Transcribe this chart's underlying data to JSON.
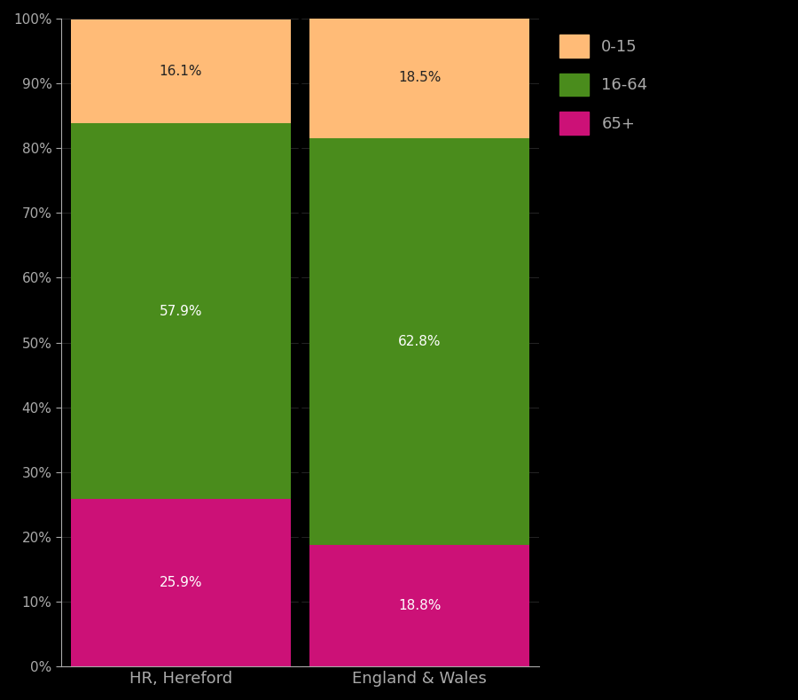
{
  "categories": [
    "HR, Hereford",
    "England & Wales"
  ],
  "segments": {
    "65+": [
      25.9,
      18.8
    ],
    "16-64": [
      57.9,
      62.8
    ],
    "0-15": [
      16.1,
      18.5
    ]
  },
  "colors": {
    "65+": "#cc1177",
    "16-64": "#4a8c1c",
    "0-15": "#ffbb77"
  },
  "label_colors": {
    "65+": "white",
    "16-64": "white",
    "0-15": "#222222"
  },
  "background_color": "#000000",
  "plot_bg_color": "#000000",
  "text_color": "#aaaaaa",
  "ytick_color": "#aaaaaa",
  "xtick_color": "#aaaaaa",
  "spine_color": "#aaaaaa",
  "separator_color": "#000000",
  "bar_width": 0.92,
  "ylim": [
    0,
    100
  ],
  "yticks": [
    0,
    10,
    20,
    30,
    40,
    50,
    60,
    70,
    80,
    90,
    100
  ],
  "ytick_labels": [
    "0%",
    "10%",
    "20%",
    "30%",
    "40%",
    "50%",
    "60%",
    "70%",
    "80%",
    "90%",
    "100%"
  ],
  "label_fontsize": 11,
  "tick_fontsize": 11,
  "xtick_fontsize": 13
}
